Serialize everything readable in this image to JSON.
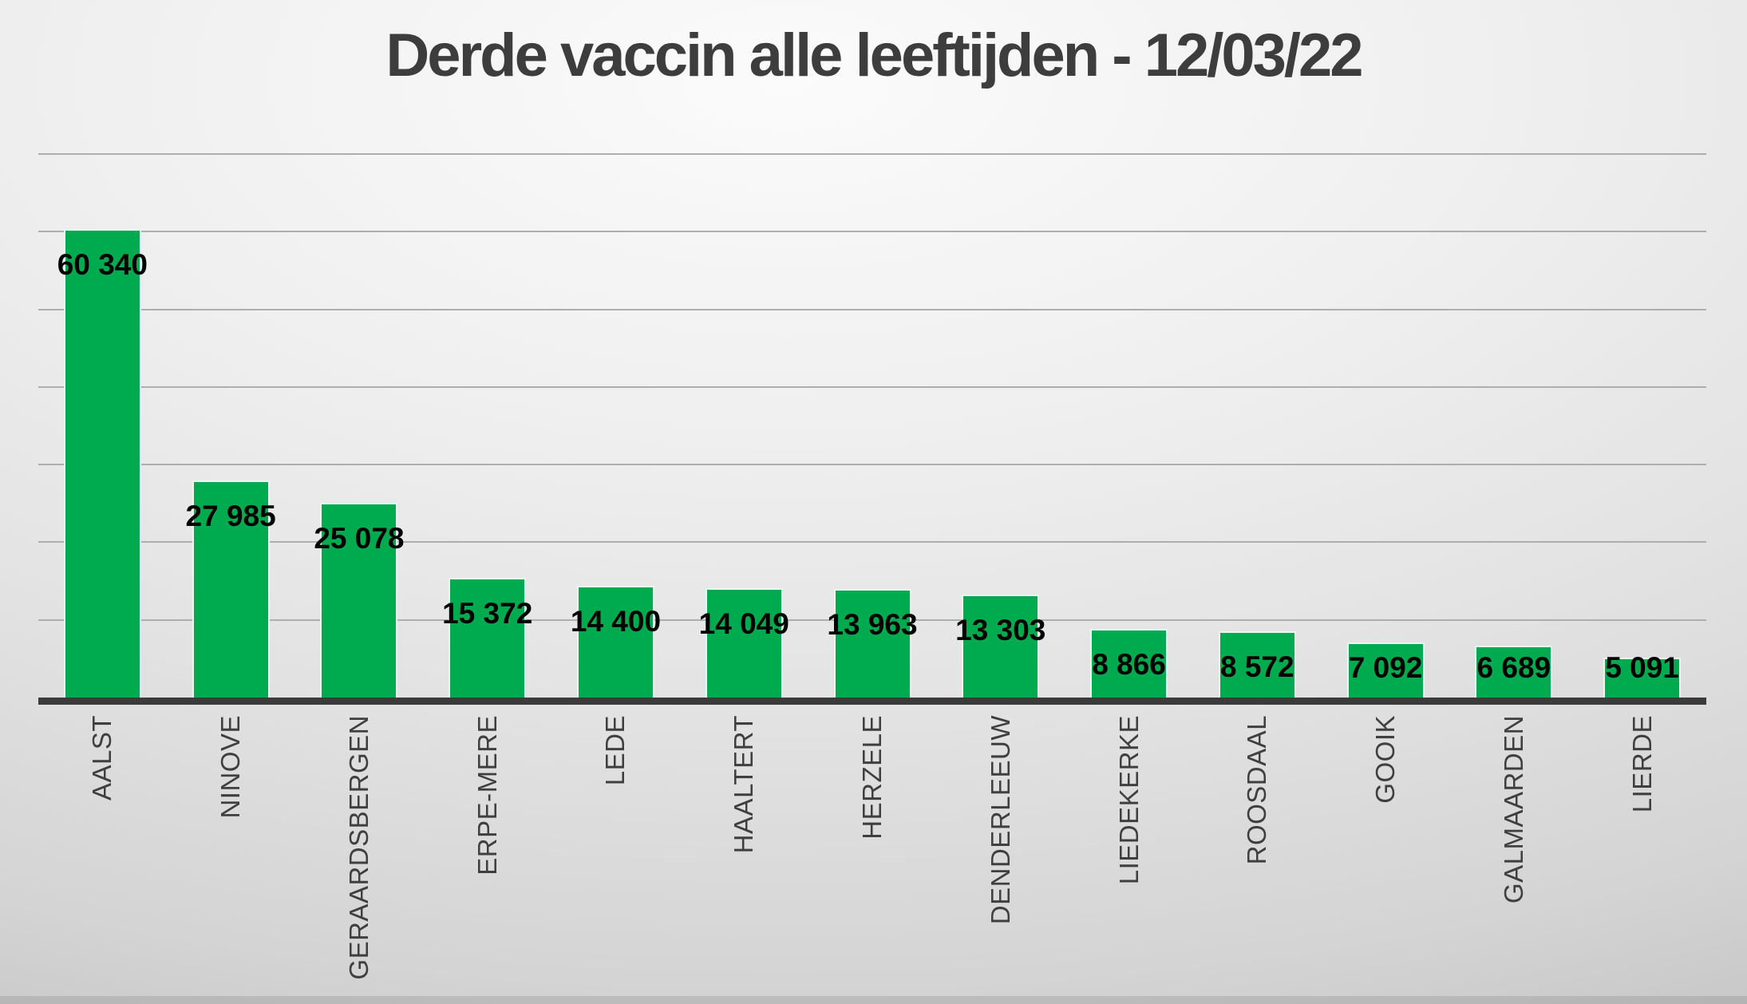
{
  "chart_data": {
    "type": "bar",
    "title": "Derde vaccin alle leeftijden - 12/03/22",
    "categories": [
      "AALST",
      "NINOVE",
      "GERAARDSBERGEN",
      "ERPE-MERE",
      "LEDE",
      "HAALTERT",
      "HERZELE",
      "DENDERLEEUW",
      "LIEDEKERKE",
      "ROOSDAAL",
      "GOOIK",
      "GALMAARDEN",
      "LIERDE"
    ],
    "values": [
      60340,
      27985,
      25078,
      15372,
      14400,
      14049,
      13963,
      13303,
      8866,
      8572,
      7092,
      6689,
      5091
    ],
    "value_labels": [
      "60 340",
      "27 985",
      "25 078",
      "15 372",
      "14 400",
      "14 049",
      "13 963",
      "13 303",
      "8 866",
      "8 572",
      "7 092",
      "6 689",
      "5 091"
    ],
    "xlabel": "",
    "ylabel": "",
    "ylim": [
      0,
      70000
    ],
    "gridline_step": 10000,
    "grid": true,
    "legend": false,
    "colors": {
      "bar_fill": "#00AB50",
      "bar_edge": "#EAF7F0",
      "axis_line": "#3B3B3B",
      "gridline": "#AEAEAE",
      "value_label": "#000000",
      "category_label": "#3F3F3F",
      "title": "#3D3D3D"
    }
  }
}
